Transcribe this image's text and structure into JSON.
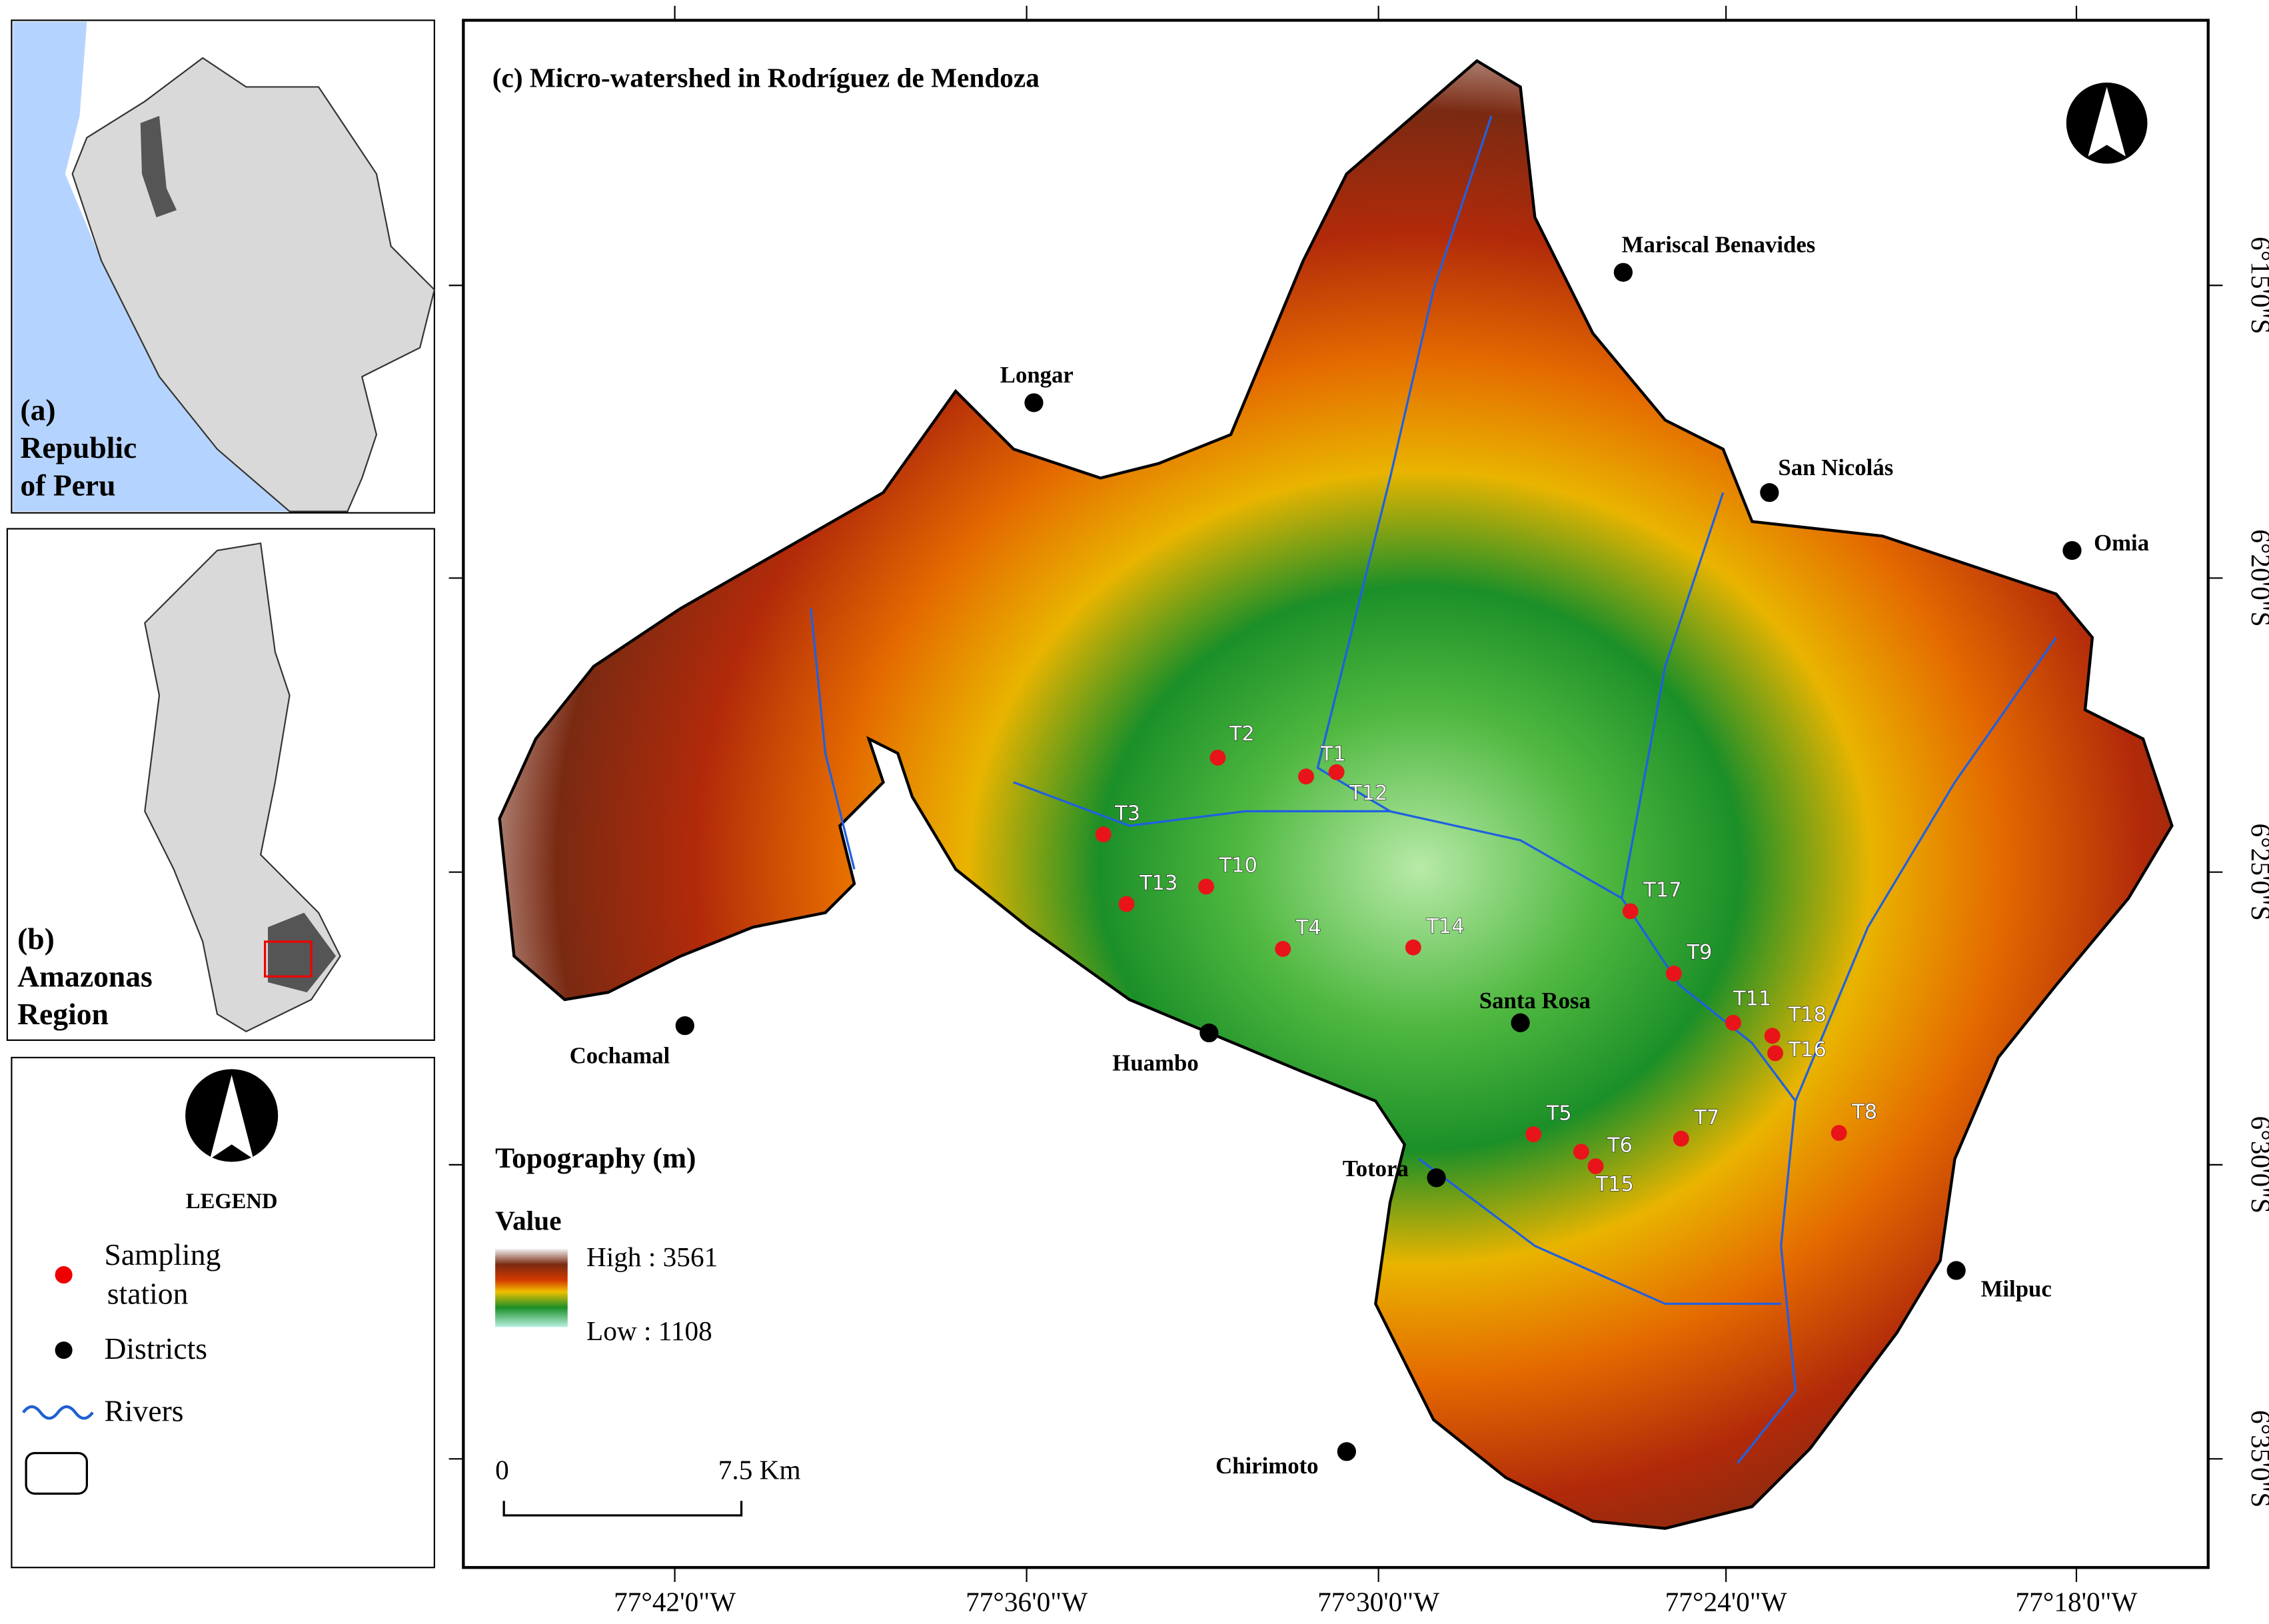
{
  "inset_a": {
    "label": "(a)",
    "name": [
      "Republic",
      "of Peru"
    ]
  },
  "inset_b": {
    "label": "(b)",
    "name": [
      "Amazonas",
      "Region"
    ]
  },
  "legend": {
    "title": "LEGEND",
    "items": [
      [
        "Sampling",
        "station"
      ],
      [
        "Districts"
      ],
      [
        "Rivers"
      ]
    ]
  },
  "map": {
    "title": "(c) Micro-watershed in Rodríguez de Mendoza",
    "stations": [
      "T1",
      "T2",
      "T3",
      "T4",
      "T5",
      "T6",
      "T7",
      "T8",
      "T9",
      "T10",
      "T11",
      "T12",
      "T13",
      "T14",
      "T15",
      "T16",
      "T17",
      "T18"
    ],
    "districts": [
      "Mariscal Benavides",
      "Longar",
      "San Nicolás",
      "Omia",
      "Cochamal",
      "Huambo",
      "Santa Rosa",
      "Totora",
      "Milpuc",
      "Chirimoto"
    ],
    "lon_ticks": [
      "77°42'0\"W",
      "77°36'0\"W",
      "77°30'0\"W",
      "77°24'0\"W",
      "77°18'0\"W"
    ],
    "lat_ticks": [
      "6°15'0\"S",
      "6°20'0\"S",
      "6°25'0\"S",
      "6°30'0\"S",
      "6°35'0\"S"
    ],
    "topography": {
      "title": "Topography (m)",
      "value": "Value",
      "high": "High : 3561",
      "low": "Low : 1108"
    },
    "scale_bar": [
      "0",
      "7.5  Km"
    ]
  }
}
